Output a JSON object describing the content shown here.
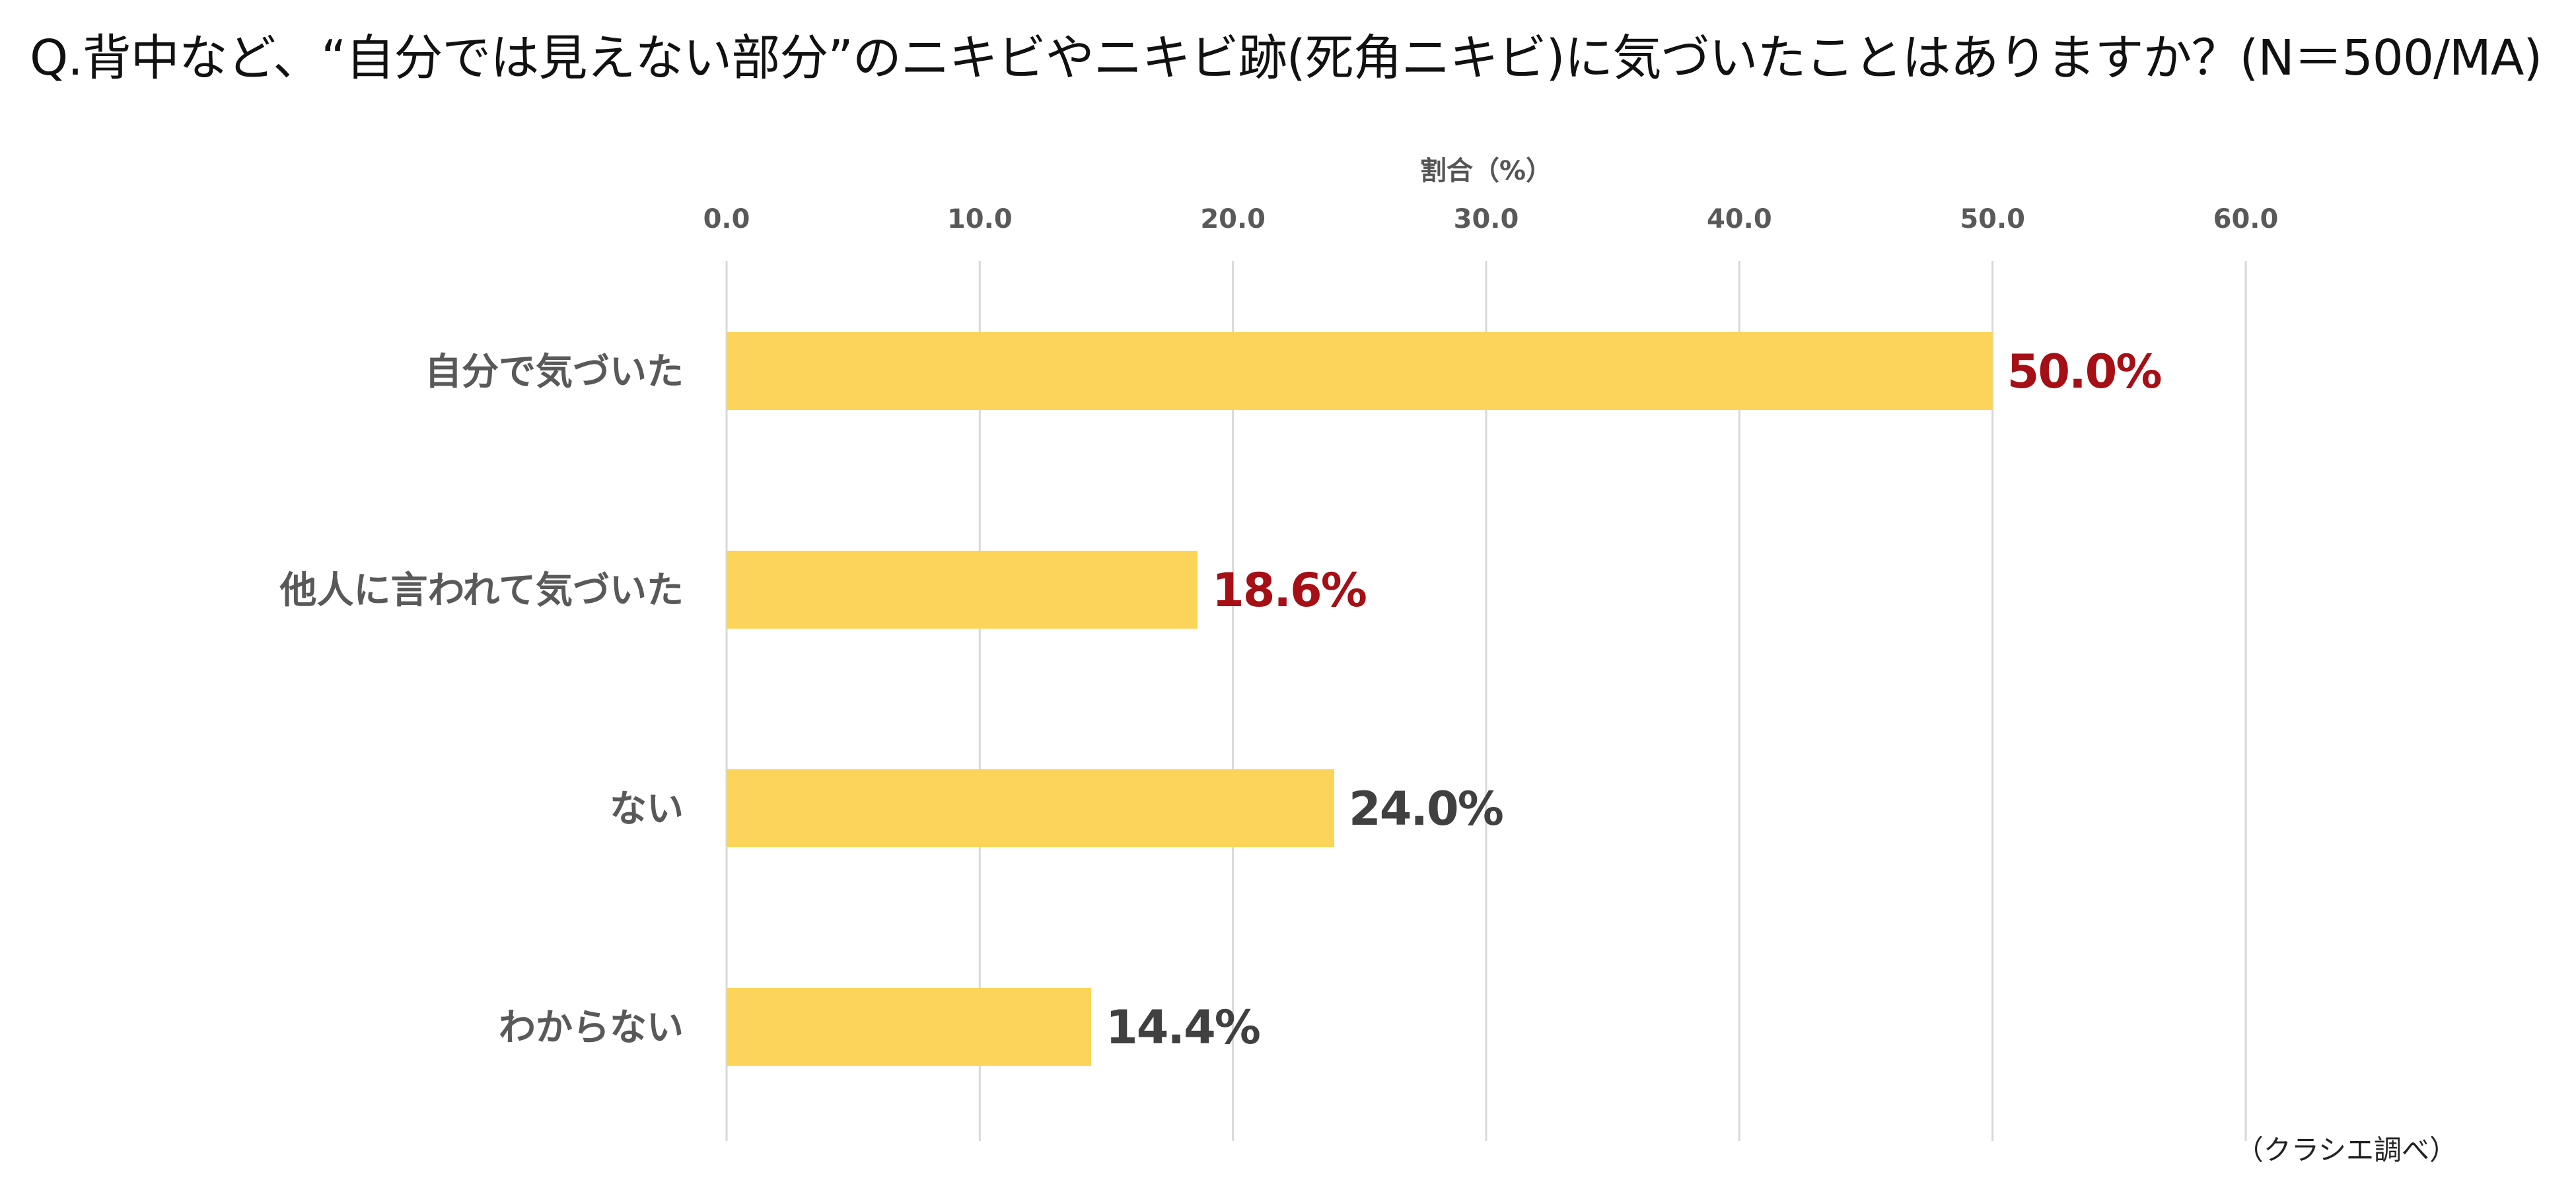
{
  "question": "Q.背中など、“自分では見えない部分”のニキビやニキビ跡(死角ニキビ)に気づいたことはありますか？(N＝500/MA)",
  "source_note": "（クラシエ調べ）",
  "colors": {
    "bar": "#FCD45A",
    "value_highlight": "#A50F15",
    "value_normal": "#404040",
    "grid": "#D9D9D9"
  },
  "chart_data": {
    "type": "bar",
    "orientation": "horizontal",
    "title": "",
    "xlabel": "割合（%）",
    "ylabel": "",
    "xlim": [
      0,
      60
    ],
    "x_ticks": [
      "0.0",
      "10.0",
      "20.0",
      "30.0",
      "40.0",
      "50.0",
      "60.0"
    ],
    "x_tick_values": [
      0,
      10,
      20,
      30,
      40,
      50,
      60
    ],
    "x_axis_position": "top",
    "grid": true,
    "legend": "none",
    "categories": [
      "自分で気づいた",
      "他人に言われて気づいた",
      "ない",
      "わからない"
    ],
    "values": [
      50.0,
      18.6,
      24.0,
      14.4
    ],
    "value_labels": [
      "50.0%",
      "18.6%",
      "24.0%",
      "14.4%"
    ],
    "value_label_highlight": [
      true,
      true,
      false,
      false
    ]
  }
}
